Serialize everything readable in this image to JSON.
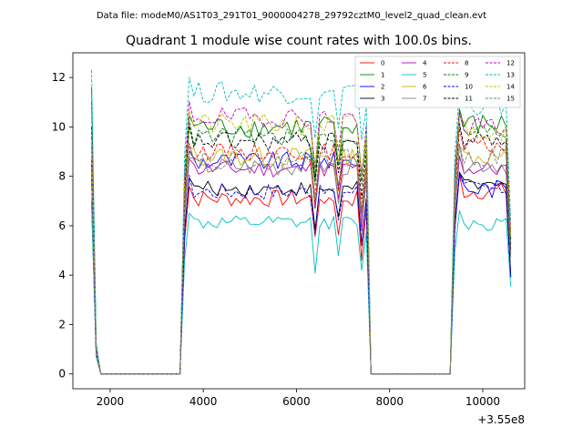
{
  "figure": {
    "suptitle": "Data file: modeM0/AS1T03_291T01_9000004278_29792cztM0_level2_quad_clean.evt"
  },
  "chart_data": {
    "type": "line",
    "title": "Quadrant 1 module wise count rates with 100.0s bins.",
    "xlabel": "",
    "ylabel": "",
    "x_offset_label": "+3.55e8",
    "xlim": [
      1200,
      10900
    ],
    "ylim": [
      -0.6,
      13
    ],
    "x_ticks": [
      2000,
      4000,
      6000,
      8000,
      10000
    ],
    "x_tick_labels": [
      "2000",
      "4000",
      "6000",
      "8000",
      "10000"
    ],
    "y_ticks": [
      0,
      2,
      4,
      6,
      8,
      10,
      12
    ],
    "y_tick_labels": [
      "0",
      "2",
      "4",
      "6",
      "8",
      "10",
      "12"
    ],
    "grid": false,
    "legend_position": "top-right",
    "legend_columns": 4,
    "x_segments": [
      {
        "start": 1600,
        "end": 1800
      },
      {
        "start": 3500,
        "end": 3500
      },
      {
        "start": 3500,
        "end": 7600
      },
      {
        "start": 7600,
        "end": 9300
      },
      {
        "start": 9300,
        "end": 10600
      }
    ],
    "series": [
      {
        "name": "0",
        "color": "#ff0000",
        "dash": "solid",
        "segment_levels": [
          8.5,
          0,
          7.1,
          0,
          7.4
        ],
        "noise": 0.35
      },
      {
        "name": "1",
        "color": "#008000",
        "dash": "solid",
        "segment_levels": [
          11.6,
          0,
          10.0,
          0,
          10.1
        ],
        "noise": 0.45
      },
      {
        "name": "2",
        "color": "#0000ff",
        "dash": "solid",
        "segment_levels": [
          7.0,
          0,
          8.6,
          0,
          7.5
        ],
        "noise": 0.4
      },
      {
        "name": "3",
        "color": "#000000",
        "dash": "solid",
        "segment_levels": [
          8.0,
          0,
          7.5,
          0,
          7.6
        ],
        "noise": 0.3
      },
      {
        "name": "4",
        "color": "#bf00bf",
        "dash": "solid",
        "segment_levels": [
          8.0,
          0,
          8.3,
          0,
          8.3
        ],
        "noise": 0.35
      },
      {
        "name": "5",
        "color": "#00bfbf",
        "dash": "solid",
        "segment_levels": [
          7.0,
          0,
          6.1,
          0,
          6.1
        ],
        "noise": 0.3
      },
      {
        "name": "6",
        "color": "#bfbf00",
        "dash": "solid",
        "segment_levels": [
          9.3,
          0,
          8.8,
          0,
          8.8
        ],
        "noise": 0.4
      },
      {
        "name": "7",
        "color": "#808080",
        "dash": "solid",
        "segment_levels": [
          9.3,
          0,
          8.4,
          0,
          8.5
        ],
        "noise": 0.4
      },
      {
        "name": "8",
        "color": "#ff0000",
        "dash": "dashed",
        "segment_levels": [
          8.0,
          0,
          9.0,
          0,
          9.2
        ],
        "noise": 0.35
      },
      {
        "name": "9",
        "color": "#008000",
        "dash": "dashed",
        "segment_levels": [
          11.0,
          0,
          9.6,
          0,
          9.8
        ],
        "noise": 0.4
      },
      {
        "name": "10",
        "color": "#0000ff",
        "dash": "dashed",
        "segment_levels": [
          8.7,
          0,
          7.4,
          0,
          7.5
        ],
        "noise": 0.35
      },
      {
        "name": "11",
        "color": "#000000",
        "dash": "dashed",
        "segment_levels": [
          10.0,
          0,
          9.4,
          0,
          9.5
        ],
        "noise": 0.4
      },
      {
        "name": "12",
        "color": "#bf00bf",
        "dash": "dashed",
        "segment_levels": [
          10.0,
          0,
          10.4,
          0,
          10.0
        ],
        "noise": 0.4
      },
      {
        "name": "13",
        "color": "#00bfbf",
        "dash": "dashed",
        "segment_levels": [
          12.3,
          0,
          11.4,
          0,
          10.9
        ],
        "noise": 0.45
      },
      {
        "name": "14",
        "color": "#bfbf00",
        "dash": "dashed",
        "segment_levels": [
          9.5,
          0,
          10.1,
          0,
          9.9
        ],
        "noise": 0.45
      },
      {
        "name": "15",
        "color": "#808080",
        "dash": "dashed",
        "segment_levels": [
          8.0,
          0,
          8.7,
          0,
          8.8
        ],
        "noise": 0.4
      }
    ]
  }
}
